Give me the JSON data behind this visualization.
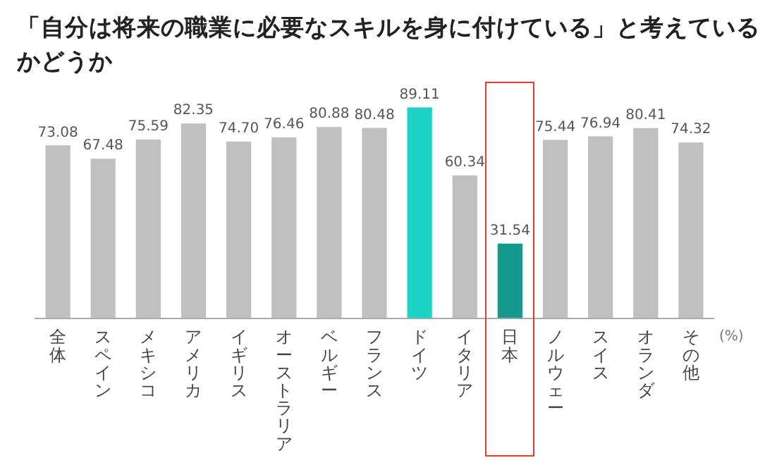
{
  "chart_data": {
    "type": "bar",
    "title": "「自分は将来の職業に必要なスキルを身に付けている」と考えているかどうか",
    "ylabel": "(%)",
    "categories": [
      "全体",
      "スペイン",
      "メキシコ",
      "アメリカ",
      "イギリス",
      "オーストラリア",
      "ベルギー",
      "フランス",
      "ドイツ",
      "イタリア",
      "日本",
      "ノルウェー",
      "スイス",
      "オランダ",
      "その他"
    ],
    "values": [
      73.08,
      67.48,
      75.59,
      82.35,
      74.7,
      76.46,
      80.88,
      80.48,
      89.11,
      60.34,
      31.54,
      75.44,
      76.94,
      80.41,
      74.32
    ],
    "colors": [
      "#c0c0c0",
      "#c0c0c0",
      "#c0c0c0",
      "#c0c0c0",
      "#c0c0c0",
      "#c0c0c0",
      "#c0c0c0",
      "#c0c0c0",
      "#1dd3c6",
      "#c0c0c0",
      "#179a8e",
      "#c0c0c0",
      "#c0c0c0",
      "#c0c0c0",
      "#c0c0c0"
    ],
    "value_labels": [
      "73.08",
      "67.48",
      "75.59",
      "82.35",
      "74.70",
      "76.46",
      "80.88",
      "80.48",
      "89.11",
      "60.34",
      "31.54",
      "75.44",
      "76.94",
      "80.41",
      "74.32"
    ],
    "grid": false,
    "legend": false
  }
}
